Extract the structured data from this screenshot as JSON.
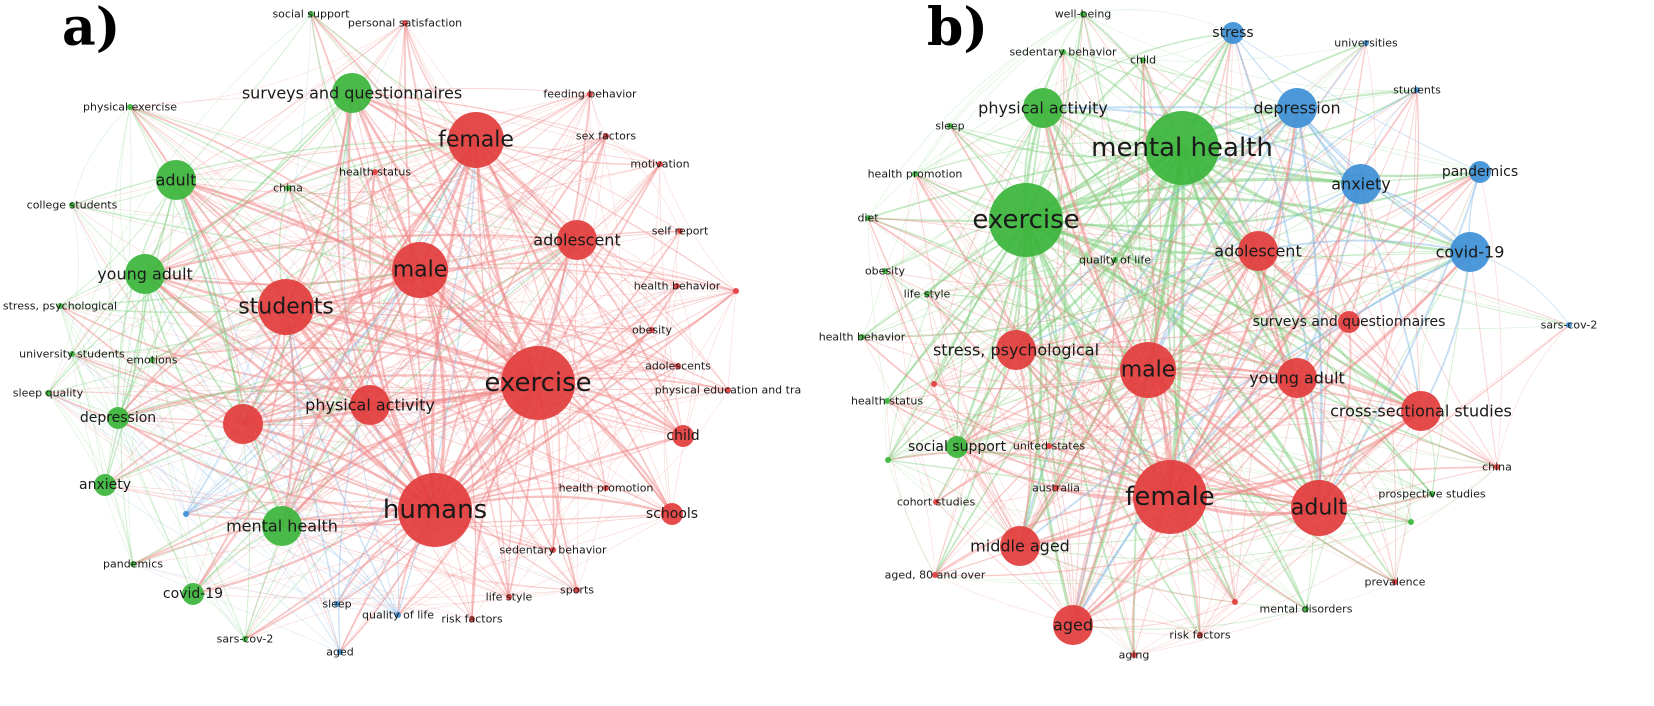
{
  "panels": [
    {
      "label": "a)",
      "nodes": [
        {
          "text": "humans",
          "cluster": "red",
          "size": "xl"
        },
        {
          "text": "exercise",
          "cluster": "red",
          "size": "xl"
        },
        {
          "text": "female",
          "cluster": "red",
          "size": "l"
        },
        {
          "text": "students",
          "cluster": "red",
          "size": "l"
        },
        {
          "text": "male",
          "cluster": "red",
          "size": "l"
        },
        {
          "text": "adolescent",
          "cluster": "red",
          "size": "m"
        },
        {
          "text": "physical activity",
          "cluster": "red",
          "size": "m"
        },
        {
          "text": "surveys and questionnaires",
          "cluster": "green",
          "size": "m"
        },
        {
          "text": "mental health",
          "cluster": "green",
          "size": "m"
        },
        {
          "text": "adult",
          "cluster": "green",
          "size": "m"
        },
        {
          "text": "young adult",
          "cluster": "green",
          "size": "m"
        },
        {
          "text": "depression",
          "cluster": "green",
          "size": "s"
        },
        {
          "text": "anxiety",
          "cluster": "green",
          "size": "s"
        },
        {
          "text": "covid-19",
          "cluster": "green",
          "size": "s"
        },
        {
          "text": "china",
          "cluster": "green",
          "size": "xs"
        },
        {
          "text": "college students",
          "cluster": "green",
          "size": "xs"
        },
        {
          "text": "physical exercise",
          "cluster": "green",
          "size": "xs"
        },
        {
          "text": "social support",
          "cluster": "green",
          "size": "xs"
        },
        {
          "text": "stress, psychological",
          "cluster": "green",
          "size": "xs"
        },
        {
          "text": "university students",
          "cluster": "green",
          "size": "xs"
        },
        {
          "text": "emotions",
          "cluster": "green",
          "size": "xs"
        },
        {
          "text": "sleep quality",
          "cluster": "green",
          "size": "xs"
        },
        {
          "text": "pandemics",
          "cluster": "green",
          "size": "xs"
        },
        {
          "text": "sars-cov-2",
          "cluster": "green",
          "size": "xs"
        },
        {
          "text": "sleep",
          "cluster": "blue",
          "size": "xs"
        },
        {
          "text": "quality of life",
          "cluster": "blue",
          "size": "xs"
        },
        {
          "text": "aged",
          "cluster": "blue",
          "size": "xs"
        },
        {
          "text": "personal satisfaction",
          "cluster": "red",
          "size": "xs"
        },
        {
          "text": "feeding behavior",
          "cluster": "red",
          "size": "xs"
        },
        {
          "text": "sex factors",
          "cluster": "red",
          "size": "xs"
        },
        {
          "text": "motivation",
          "cluster": "red",
          "size": "xs"
        },
        {
          "text": "health status",
          "cluster": "red",
          "size": "xs"
        },
        {
          "text": "self report",
          "cluster": "red",
          "size": "xs"
        },
        {
          "text": "health behavior",
          "cluster": "red",
          "size": "xs"
        },
        {
          "text": "obesity",
          "cluster": "red",
          "size": "xs"
        },
        {
          "text": "adolescents",
          "cluster": "red",
          "size": "xs"
        },
        {
          "text": "physical education and tra",
          "cluster": "red",
          "size": "xs"
        },
        {
          "text": "child",
          "cluster": "red",
          "size": "s"
        },
        {
          "text": "health promotion",
          "cluster": "red",
          "size": "xs"
        },
        {
          "text": "schools",
          "cluster": "red",
          "size": "s"
        },
        {
          "text": "sedentary behavior",
          "cluster": "red",
          "size": "xs"
        },
        {
          "text": "sports",
          "cluster": "red",
          "size": "xs"
        },
        {
          "text": "life style",
          "cluster": "red",
          "size": "xs"
        },
        {
          "text": "risk factors",
          "cluster": "red",
          "size": "xs"
        }
      ]
    },
    {
      "label": "b)",
      "nodes": [
        {
          "text": "mental health",
          "cluster": "green",
          "size": "xl"
        },
        {
          "text": "exercise",
          "cluster": "green",
          "size": "xl"
        },
        {
          "text": "female",
          "cluster": "red",
          "size": "xl"
        },
        {
          "text": "male",
          "cluster": "red",
          "size": "l"
        },
        {
          "text": "depression",
          "cluster": "blue",
          "size": "m"
        },
        {
          "text": "anxiety",
          "cluster": "blue",
          "size": "m"
        },
        {
          "text": "covid-19",
          "cluster": "blue",
          "size": "m"
        },
        {
          "text": "stress",
          "cluster": "blue",
          "size": "s"
        },
        {
          "text": "universities",
          "cluster": "blue",
          "size": "xs"
        },
        {
          "text": "students",
          "cluster": "blue",
          "size": "xs"
        },
        {
          "text": "pandemics",
          "cluster": "blue",
          "size": "s"
        },
        {
          "text": "sars-cov-2",
          "cluster": "blue",
          "size": "xs"
        },
        {
          "text": "physical activity",
          "cluster": "green",
          "size": "m"
        },
        {
          "text": "well-being",
          "cluster": "green",
          "size": "xs"
        },
        {
          "text": "sedentary behavior",
          "cluster": "green",
          "size": "xs"
        },
        {
          "text": "child",
          "cluster": "green",
          "size": "xs"
        },
        {
          "text": "sleep",
          "cluster": "green",
          "size": "xs"
        },
        {
          "text": "health promotion",
          "cluster": "green",
          "size": "xs"
        },
        {
          "text": "diet",
          "cluster": "green",
          "size": "xs"
        },
        {
          "text": "obesity",
          "cluster": "green",
          "size": "xs"
        },
        {
          "text": "life style",
          "cluster": "green",
          "size": "xs"
        },
        {
          "text": "health behavior",
          "cluster": "green",
          "size": "xs"
        },
        {
          "text": "health status",
          "cluster": "green",
          "size": "xs"
        },
        {
          "text": "quality of life",
          "cluster": "green",
          "size": "xs"
        },
        {
          "text": "social support",
          "cluster": "green",
          "size": "s"
        },
        {
          "text": "adolescent",
          "cluster": "red",
          "size": "m"
        },
        {
          "text": "surveys and questionnaires",
          "cluster": "red",
          "size": "s"
        },
        {
          "text": "stress, psychological",
          "cluster": "red",
          "size": "m"
        },
        {
          "text": "young adult",
          "cluster": "red",
          "size": "m"
        },
        {
          "text": "cross-sectional studies",
          "cluster": "red",
          "size": "m"
        },
        {
          "text": "adult",
          "cluster": "red",
          "size": "l"
        },
        {
          "text": "middle aged",
          "cluster": "red",
          "size": "m"
        },
        {
          "text": "aged",
          "cluster": "red",
          "size": "m"
        },
        {
          "text": "united states",
          "cluster": "red",
          "size": "xs"
        },
        {
          "text": "australia",
          "cluster": "red",
          "size": "xs"
        },
        {
          "text": "cohort studies",
          "cluster": "red",
          "size": "xs"
        },
        {
          "text": "aged, 80 and over",
          "cluster": "red",
          "size": "xs"
        },
        {
          "text": "china",
          "cluster": "red",
          "size": "xs"
        },
        {
          "text": "prospective studies",
          "cluster": "green",
          "size": "xs"
        },
        {
          "text": "prevalence",
          "cluster": "red",
          "size": "xs"
        },
        {
          "text": "mental disorders",
          "cluster": "green",
          "size": "xs"
        },
        {
          "text": "risk factors",
          "cluster": "red",
          "size": "xs"
        },
        {
          "text": "aging",
          "cluster": "red",
          "size": "xs"
        }
      ]
    }
  ],
  "colors": {
    "red": "#e23c3c",
    "green": "#3bb53b",
    "blue": "#3d8fd6",
    "red_edge": "#f08585",
    "green_edge": "#7fd07f",
    "blue_edge": "#7fb6e6"
  }
}
